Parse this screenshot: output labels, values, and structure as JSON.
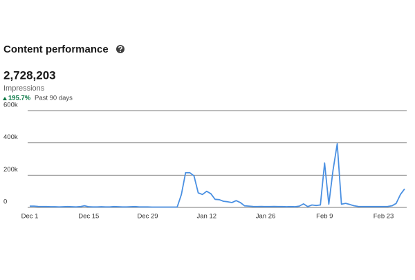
{
  "header": {
    "title": "Content performance"
  },
  "summary": {
    "value": "2,728,203",
    "label": "Impressions",
    "change": "195.7%",
    "period": "Past 90 days"
  },
  "chart_data": {
    "type": "line",
    "categories": [
      "Dec 1",
      null,
      null,
      null,
      null,
      null,
      null,
      null,
      null,
      null,
      null,
      null,
      null,
      null,
      "Dec 15",
      null,
      null,
      null,
      null,
      null,
      null,
      null,
      null,
      null,
      null,
      null,
      null,
      null,
      "Dec 29",
      null,
      null,
      null,
      null,
      null,
      null,
      null,
      null,
      null,
      null,
      null,
      null,
      null,
      "Jan 12",
      null,
      null,
      null,
      null,
      null,
      null,
      null,
      null,
      null,
      null,
      null,
      null,
      null,
      "Jan 26",
      null,
      null,
      null,
      null,
      null,
      null,
      null,
      null,
      null,
      null,
      null,
      null,
      null,
      "Feb 9",
      null,
      null,
      null,
      null,
      null,
      null,
      null,
      null,
      null,
      null,
      null,
      null,
      null,
      "Feb 23",
      null,
      null,
      null,
      null,
      null
    ],
    "values": [
      8000,
      8000,
      6000,
      5000,
      5000,
      4000,
      4000,
      3000,
      4000,
      5000,
      4000,
      3000,
      5000,
      10000,
      4000,
      3000,
      3000,
      4000,
      3000,
      3000,
      5000,
      4000,
      3000,
      3000,
      4000,
      5000,
      3000,
      3000,
      3000,
      2000,
      2000,
      2000,
      2000,
      2000,
      2000,
      2000,
      80000,
      215000,
      215000,
      195000,
      90000,
      80000,
      100000,
      85000,
      50000,
      48000,
      38000,
      35000,
      30000,
      42000,
      30000,
      10000,
      8000,
      6000,
      5000,
      6000,
      5000,
      5000,
      6000,
      5000,
      5000,
      4000,
      5000,
      4000,
      8000,
      22000,
      5000,
      15000,
      12000,
      15000,
      275000,
      20000,
      230000,
      395000,
      20000,
      25000,
      18000,
      10000,
      6000,
      5000,
      5000,
      5000,
      5000,
      5000,
      5000,
      6000,
      10000,
      25000,
      80000,
      115000
    ],
    "color": "#4a90e2",
    "ylim": [
      0,
      600000
    ],
    "yticks": [
      0,
      {
        "value": 200000,
        "label": "200k"
      },
      {
        "value": 400000,
        "label": "400k"
      },
      {
        "value": 600000,
        "label": "600k"
      }
    ],
    "grid": true
  }
}
